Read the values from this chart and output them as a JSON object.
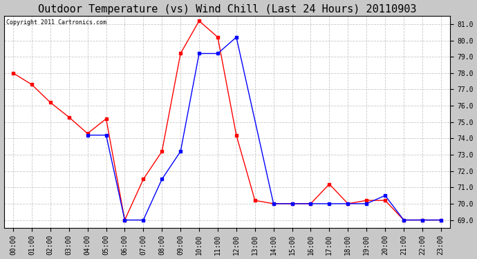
{
  "title": "Outdoor Temperature (vs) Wind Chill (Last 24 Hours) 20110903",
  "copyright_text": "Copyright 2011 Cartronics.com",
  "x_labels": [
    "00:00",
    "01:00",
    "02:00",
    "03:00",
    "04:00",
    "05:00",
    "06:00",
    "07:00",
    "08:00",
    "09:00",
    "10:00",
    "11:00",
    "12:00",
    "13:00",
    "14:00",
    "15:00",
    "16:00",
    "17:00",
    "18:00",
    "19:00",
    "20:00",
    "21:00",
    "22:00",
    "23:00"
  ],
  "ylim": [
    68.5,
    81.5
  ],
  "yticks": [
    69.0,
    70.0,
    71.0,
    72.0,
    73.0,
    74.0,
    75.0,
    76.0,
    77.0,
    78.0,
    79.0,
    80.0,
    81.0
  ],
  "temp_color": "#ff0000",
  "wind_chill_color": "#0000ff",
  "background_color": "#ffffff",
  "grid_color": "#c8c8c8",
  "temp_data": {
    "x": [
      0,
      1,
      2,
      3,
      4,
      5,
      6,
      7,
      8,
      9,
      10,
      11,
      12,
      13,
      14,
      15,
      16,
      17,
      18,
      19,
      20,
      21,
      22,
      23
    ],
    "y": [
      78.0,
      77.3,
      76.2,
      75.3,
      74.3,
      75.2,
      69.0,
      71.5,
      73.2,
      79.2,
      81.2,
      80.2,
      74.2,
      70.2,
      70.0,
      70.0,
      70.0,
      71.2,
      70.0,
      70.2,
      70.2,
      69.0,
      69.0,
      69.0
    ]
  },
  "wind_chill_data": {
    "x": [
      4,
      5,
      6,
      7,
      8,
      9,
      10,
      11,
      12,
      14,
      15,
      16,
      17,
      18,
      19,
      20,
      21,
      22,
      23
    ],
    "y": [
      74.2,
      74.2,
      69.0,
      69.0,
      71.5,
      73.2,
      79.2,
      79.2,
      80.2,
      70.0,
      70.0,
      70.0,
      70.0,
      70.0,
      70.0,
      70.5,
      69.0,
      69.0,
      69.0
    ]
  },
  "marker_size": 3,
  "line_width": 1.0,
  "title_fontsize": 11,
  "tick_fontsize": 7,
  "copyright_fontsize": 6,
  "fig_bg_color": "#c8c8c8"
}
